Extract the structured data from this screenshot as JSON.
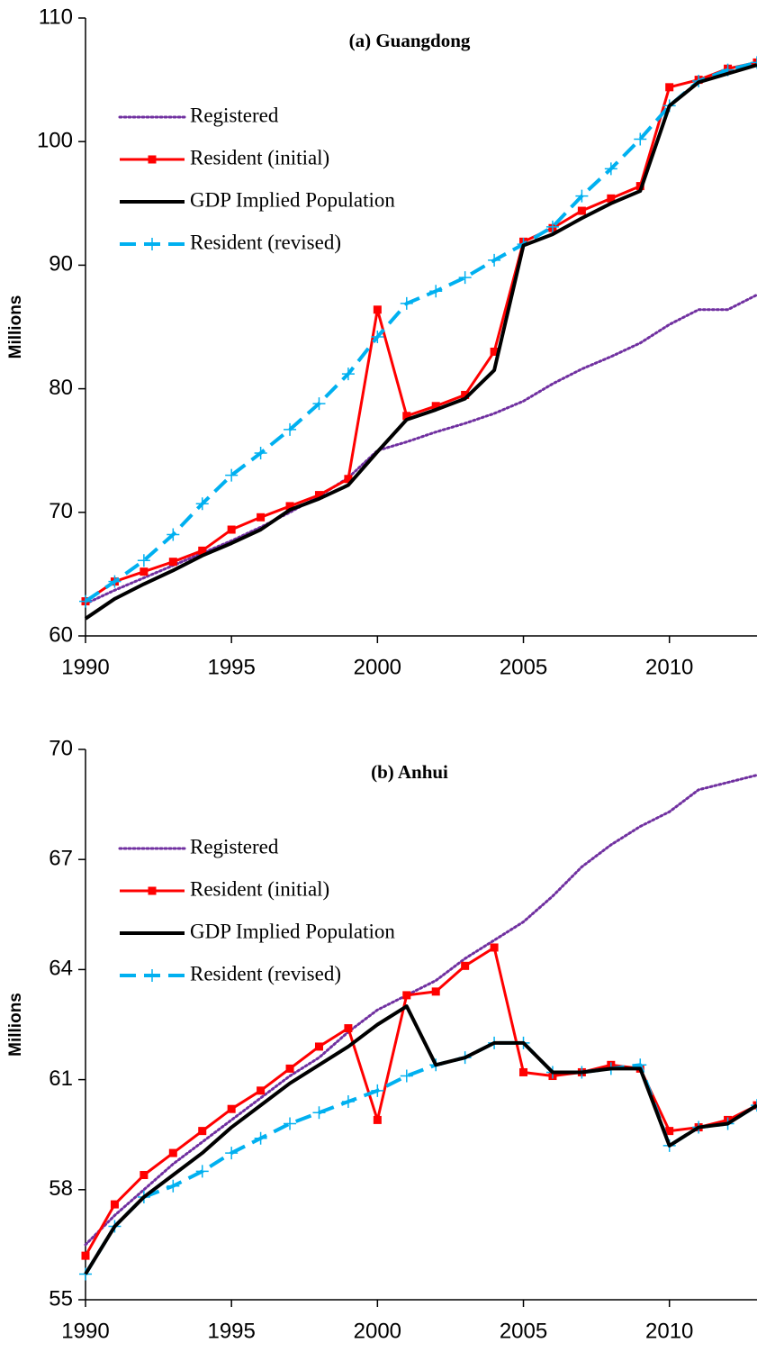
{
  "chart_data": [
    {
      "type": "line",
      "title": "(a) Guangdong",
      "ylabel": "Millions",
      "x": [
        1990,
        1991,
        1992,
        1993,
        1994,
        1995,
        1996,
        1997,
        1998,
        1999,
        2000,
        2001,
        2002,
        2003,
        2004,
        2005,
        2006,
        2007,
        2008,
        2009,
        2010,
        2011,
        2012,
        2013
      ],
      "xlim": [
        1990,
        2013
      ],
      "xticks": [
        1990,
        1995,
        2000,
        2005,
        2010
      ],
      "ylim": [
        60,
        110
      ],
      "yticks": [
        60,
        70,
        80,
        90,
        100,
        110
      ],
      "legend": "upper left",
      "series": [
        {
          "name": "Registered",
          "color": "#7030a0",
          "style": "dotted",
          "marker": "none",
          "values": [
            62.6,
            63.7,
            64.7,
            65.7,
            66.7,
            67.7,
            68.8,
            70.0,
            71.3,
            72.8,
            75.0,
            75.7,
            76.5,
            77.2,
            78.0,
            79.0,
            80.4,
            81.6,
            82.6,
            83.7,
            85.2,
            86.4,
            86.4,
            87.6
          ]
        },
        {
          "name": "Resident (initial)",
          "color": "#ff0000",
          "style": "solid",
          "marker": "square",
          "values": [
            62.8,
            64.4,
            65.2,
            66.0,
            66.9,
            68.6,
            69.6,
            70.5,
            71.4,
            72.7,
            86.4,
            77.8,
            78.6,
            79.5,
            83.0,
            91.9,
            93.0,
            94.4,
            95.4,
            96.4,
            104.4,
            105.0,
            105.9,
            106.4
          ]
        },
        {
          "name": "GDP Implied Population",
          "color": "#000000",
          "style": "thick",
          "marker": "none",
          "values": [
            61.4,
            63.0,
            64.2,
            65.3,
            66.5,
            67.5,
            68.6,
            70.2,
            71.1,
            72.2,
            74.9,
            77.5,
            78.3,
            79.2,
            81.5,
            91.6,
            92.5,
            93.8,
            95.0,
            96.0,
            102.9,
            104.8,
            105.5,
            106.2
          ]
        },
        {
          "name": "Resident (revised)",
          "color": "#00b0f0",
          "style": "dashed",
          "marker": "plus",
          "values": [
            62.8,
            64.4,
            66.1,
            68.2,
            70.7,
            73.0,
            74.8,
            76.7,
            78.8,
            81.2,
            84.2,
            86.9,
            87.9,
            89.0,
            90.4,
            91.7,
            93.1,
            95.6,
            97.8,
            100.2,
            102.9,
            104.9,
            105.8,
            106.4
          ]
        }
      ]
    },
    {
      "type": "line",
      "title": "(b) Anhui",
      "ylabel": "Millions",
      "x": [
        1990,
        1991,
        1992,
        1993,
        1994,
        1995,
        1996,
        1997,
        1998,
        1999,
        2000,
        2001,
        2002,
        2003,
        2004,
        2005,
        2006,
        2007,
        2008,
        2009,
        2010,
        2011,
        2012,
        2013
      ],
      "xlim": [
        1990,
        2013
      ],
      "xticks": [
        1990,
        1995,
        2000,
        2005,
        2010
      ],
      "ylim": [
        55,
        70
      ],
      "yticks": [
        55,
        58,
        61,
        64,
        67,
        70
      ],
      "legend": "upper left",
      "series": [
        {
          "name": "Registered",
          "color": "#7030a0",
          "style": "dotted",
          "marker": "none",
          "values": [
            56.5,
            57.3,
            58.0,
            58.7,
            59.3,
            59.9,
            60.5,
            61.1,
            61.6,
            62.3,
            62.9,
            63.3,
            63.7,
            64.3,
            64.8,
            65.3,
            66.0,
            66.8,
            67.4,
            67.9,
            68.3,
            68.9,
            69.1,
            69.3
          ]
        },
        {
          "name": "Resident (initial)",
          "color": "#ff0000",
          "style": "solid",
          "marker": "square",
          "values": [
            56.2,
            57.6,
            58.4,
            59.0,
            59.6,
            60.2,
            60.7,
            61.3,
            61.9,
            62.4,
            59.9,
            63.3,
            63.4,
            64.1,
            64.6,
            61.2,
            61.1,
            61.2,
            61.4,
            61.3,
            59.6,
            59.7,
            59.9,
            60.3
          ]
        },
        {
          "name": "GDP Implied Population",
          "color": "#000000",
          "style": "thick",
          "marker": "none",
          "values": [
            55.7,
            57.0,
            57.8,
            58.4,
            59.0,
            59.7,
            60.3,
            60.9,
            61.4,
            61.9,
            62.5,
            63.0,
            61.4,
            61.6,
            62.0,
            62.0,
            61.2,
            61.2,
            61.3,
            61.3,
            59.2,
            59.7,
            59.8,
            60.3
          ]
        },
        {
          "name": "Resident (revised)",
          "color": "#00b0f0",
          "style": "dashed",
          "marker": "plus",
          "values": [
            55.7,
            57.0,
            57.8,
            58.1,
            58.5,
            59.0,
            59.4,
            59.8,
            60.1,
            60.4,
            60.7,
            61.1,
            61.4,
            61.6,
            62.0,
            62.0,
            61.2,
            61.2,
            61.3,
            61.4,
            59.2,
            59.7,
            59.8,
            60.3
          ]
        }
      ]
    }
  ]
}
